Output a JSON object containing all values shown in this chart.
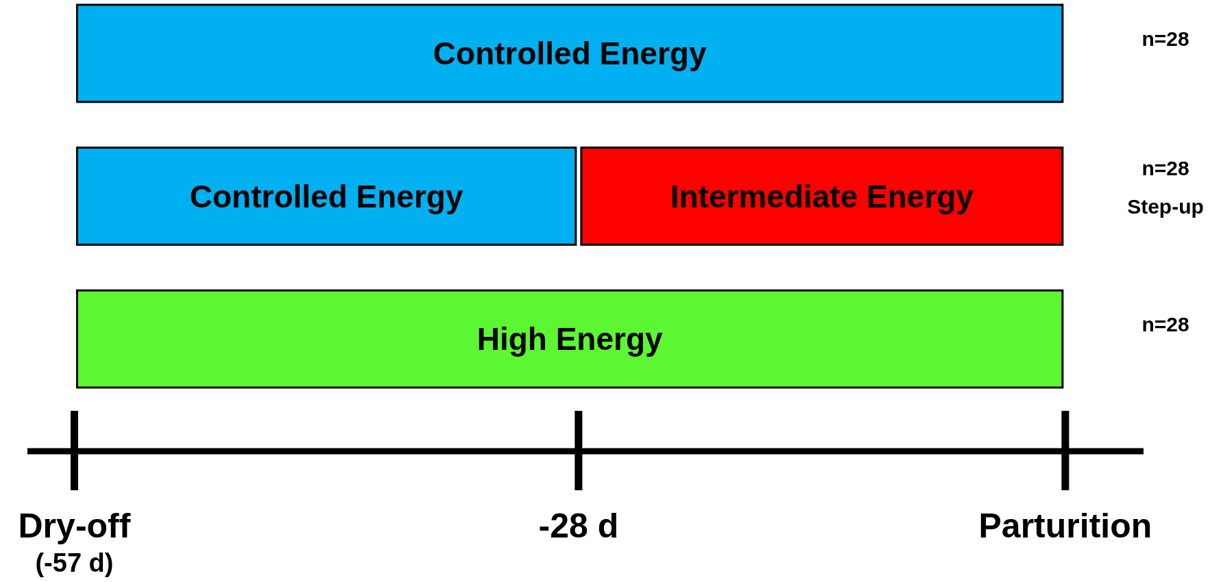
{
  "chart_data": {
    "type": "bar",
    "orientation": "horizontal",
    "categories": [
      "n=28",
      "n=28\nStep-up",
      "n=28"
    ],
    "series": [
      {
        "color": "#00b0f0",
        "values": [
          57,
          29,
          null
        ],
        "base": [
          -57,
          -57,
          null
        ],
        "value_labels": [
          "Controlled Energy",
          "Controlled Energy",
          null
        ]
      },
      {
        "color": "#ff0000",
        "values": [
          null,
          28,
          null
        ],
        "base": [
          null,
          -28,
          null
        ],
        "value_labels": [
          null,
          "Intermediate Energy",
          null
        ]
      },
      {
        "color": "#5cf732",
        "values": [
          null,
          null,
          57
        ],
        "base": [
          null,
          null,
          -57
        ],
        "value_labels": [
          null,
          null,
          "High Energy"
        ]
      }
    ],
    "xlim": [
      -59.7,
      4.5
    ],
    "xticks": [
      {
        "value": -57,
        "label": "Dry-off\n(-57 d)"
      },
      {
        "value": -28,
        "label": "-28 d"
      },
      {
        "value": 0,
        "label": "Parturition"
      }
    ],
    "grid": false
  }
}
